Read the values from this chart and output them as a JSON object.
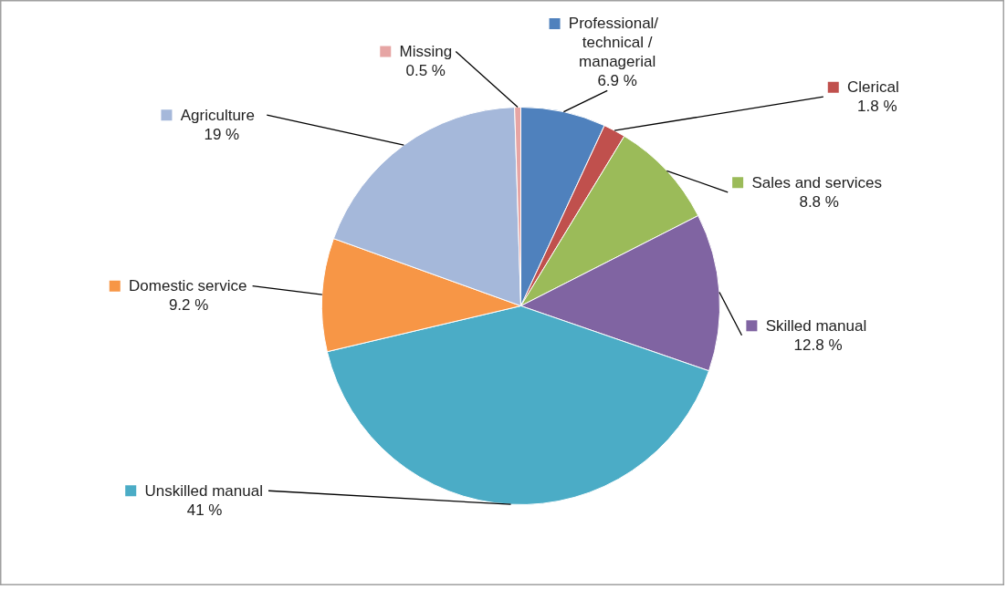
{
  "chart_data": {
    "type": "pie",
    "categories": [
      "Professional/ technical / managerial",
      "Clerical",
      "Sales and services",
      "Skilled manual",
      "Unskilled manual",
      "Domestic service",
      "Agriculture",
      "Missing"
    ],
    "legend": "right",
    "values": [
      6.9,
      1.8,
      8.8,
      12.8,
      41,
      9.2,
      19,
      0.5
    ],
    "value_labels": [
      "6.9 %",
      "1.8 %",
      "8.8 %",
      "12.8 %",
      "41 %",
      "9.2 %",
      "19 %",
      "0.5 %"
    ],
    "colors": [
      "#4f81bd",
      "#c0504d",
      "#9bbb59",
      "#8064a2",
      "#4bacc6",
      "#f79646",
      "#a5b8da",
      "#e6a5a4"
    ]
  }
}
